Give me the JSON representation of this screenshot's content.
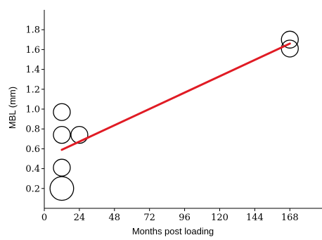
{
  "chart_data": {
    "type": "scatter",
    "title": "",
    "xlabel": "Months post loading",
    "ylabel": "MBL (mm)",
    "xlim": [
      0,
      190
    ],
    "ylim": [
      0,
      2.0
    ],
    "x_ticks": [
      0,
      24,
      48,
      72,
      96,
      120,
      144,
      168
    ],
    "y_ticks": [
      0.2,
      0.4,
      0.6,
      0.8,
      1.0,
      1.2,
      1.4,
      1.6,
      1.8
    ],
    "y_tick_labels": [
      "0.2",
      "0.4",
      "0.6",
      "0.8",
      "1.0",
      "1.2",
      "1.4",
      "1.6",
      "1.8"
    ],
    "grid": false,
    "points": [
      {
        "x": 12,
        "y": 0.97
      },
      {
        "x": 12,
        "y": 0.74
      },
      {
        "x": 24,
        "y": 0.74
      },
      {
        "x": 12,
        "y": 0.41
      },
      {
        "x": 12,
        "y": 0.2
      },
      {
        "x": 168,
        "y": 1.7
      },
      {
        "x": 168,
        "y": 1.61
      }
    ],
    "bubble_weights": [
      1,
      1,
      1,
      1,
      1.4,
      1,
      1
    ],
    "fit_line": {
      "x": [
        12,
        168
      ],
      "y": [
        0.59,
        1.66
      ],
      "color": "#e01b24"
    }
  }
}
